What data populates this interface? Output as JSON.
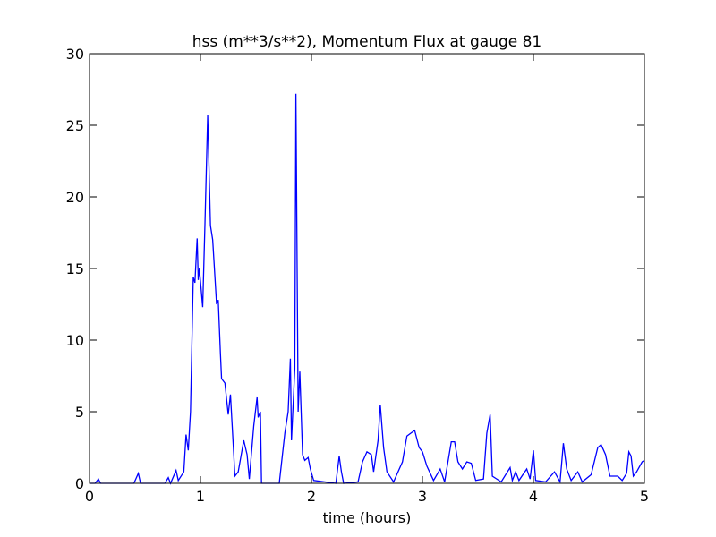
{
  "chart_data": {
    "type": "line",
    "title": "hss (m**3/s**2), Momentum Flux at gauge 81",
    "xlabel": "time (hours)",
    "x": [
      0,
      0.05,
      0.08,
      0.1,
      0.4,
      0.44,
      0.46,
      0.68,
      0.71,
      0.73,
      0.78,
      0.8,
      0.85,
      0.87,
      0.89,
      0.91,
      0.935,
      0.95,
      0.97,
      0.98,
      0.99,
      1.02,
      1.04,
      1.065,
      1.09,
      1.11,
      1.145,
      1.16,
      1.18,
      1.19,
      1.22,
      1.25,
      1.27,
      1.3,
      1.31,
      1.34,
      1.39,
      1.42,
      1.44,
      1.48,
      1.51,
      1.52,
      1.54,
      1.55,
      1.71,
      1.76,
      1.79,
      1.81,
      1.82,
      1.85,
      1.86,
      1.88,
      1.895,
      1.92,
      1.94,
      1.97,
      1.99,
      2.02,
      2.22,
      2.25,
      2.27,
      2.29,
      2.42,
      2.46,
      2.5,
      2.54,
      2.56,
      2.6,
      2.62,
      2.65,
      2.68,
      2.74,
      2.82,
      2.86,
      2.93,
      2.97,
      3.0,
      3.04,
      3.1,
      3.16,
      3.2,
      3.26,
      3.29,
      3.32,
      3.36,
      3.4,
      3.44,
      3.48,
      3.55,
      3.58,
      3.61,
      3.63,
      3.71,
      3.79,
      3.81,
      3.84,
      3.87,
      3.94,
      3.97,
      4.0,
      4.02,
      4.11,
      4.19,
      4.24,
      4.27,
      4.3,
      4.34,
      4.4,
      4.44,
      4.52,
      4.58,
      4.61,
      4.65,
      4.69,
      4.76,
      4.8,
      4.84,
      4.86,
      4.88,
      4.9,
      4.93,
      4.98,
      5.0
    ],
    "values": [
      0,
      0,
      0.3,
      0,
      0,
      0.7,
      0,
      0,
      0.4,
      0,
      0.9,
      0.2,
      0.8,
      3.4,
      2.3,
      5,
      14.4,
      14,
      17.1,
      14.2,
      15,
      12.3,
      18,
      25.7,
      18,
      17,
      12.5,
      12.8,
      9,
      7.3,
      7,
      4.8,
      6.2,
      2,
      0.5,
      0.8,
      3,
      2,
      0.3,
      4,
      6,
      4.6,
      5,
      0,
      0,
      3.5,
      5,
      8.7,
      3,
      8,
      27.2,
      5,
      7.8,
      2,
      1.6,
      1.8,
      1,
      0.2,
      0,
      1.9,
      0.8,
      0,
      0.1,
      1.5,
      2.2,
      2,
      0.8,
      3,
      5.5,
      2.5,
      0.8,
      0.1,
      1.5,
      3.3,
      3.7,
      2.5,
      2.2,
      1.2,
      0.2,
      1,
      0.1,
      2.9,
      2.9,
      1.5,
      1,
      1.5,
      1.4,
      0.2,
      0.3,
      3.5,
      4.8,
      0.5,
      0.1,
      1.1,
      0.2,
      0.8,
      0.2,
      1,
      0.3,
      2.3,
      0.2,
      0.1,
      0.8,
      0.1,
      2.8,
      1,
      0.2,
      0.8,
      0.1,
      0.6,
      2.5,
      2.7,
      2,
      0.5,
      0.5,
      0.2,
      0.7,
      2.2,
      1.9,
      0.5,
      0.8,
      1.5,
      1.6
    ],
    "color": "#0000ff",
    "xlim": [
      0,
      5
    ],
    "xticks": [
      0,
      1,
      2,
      3,
      4,
      5
    ],
    "ylim": [
      0,
      30
    ],
    "yticks": [
      0,
      5,
      10,
      15,
      20,
      25,
      30
    ]
  }
}
